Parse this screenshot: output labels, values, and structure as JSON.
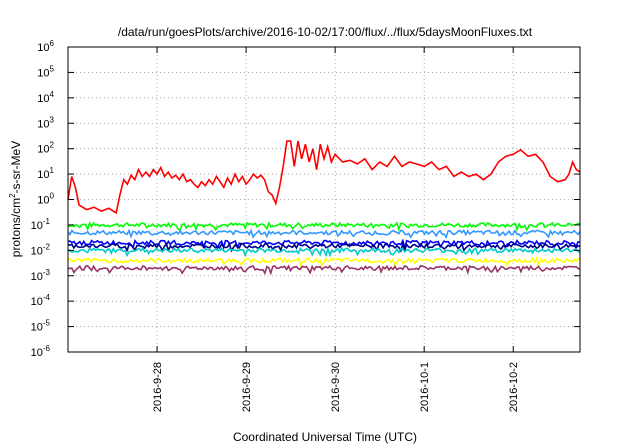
{
  "chart_data": {
    "type": "line",
    "title": "/data/run/goesPlots/archive/2016-10-02/17:00/flux/../flux/5daysMoonFluxes.txt",
    "xlabel": "Coordinated Universal Time (UTC)",
    "ylabel": {
      "base": "protons/cm",
      "sup": "2",
      "rest": "-s-sr-MeV"
    },
    "y_scale": "log",
    "ylim": [
      1e-06,
      1000000.0
    ],
    "y_ticks": [
      {
        "base": "10",
        "exp": "6"
      },
      {
        "base": "10",
        "exp": "5"
      },
      {
        "base": "10",
        "exp": "4"
      },
      {
        "base": "10",
        "exp": "3"
      },
      {
        "base": "10",
        "exp": "2"
      },
      {
        "base": "10",
        "exp": "1"
      },
      {
        "base": "10",
        "exp": "0"
      },
      {
        "base": "10",
        "exp": "-1"
      },
      {
        "base": "10",
        "exp": "-2"
      },
      {
        "base": "10",
        "exp": "-3"
      },
      {
        "base": "10",
        "exp": "-4"
      },
      {
        "base": "10",
        "exp": "-5"
      },
      {
        "base": "10",
        "exp": "-6"
      }
    ],
    "xlim": [
      "2016-09-27 00:00",
      "2016-10-02 18:00"
    ],
    "x_ticks": [
      "2016-9-28",
      "2016-9-29",
      "2016-9-30",
      "2016-10-1",
      "2016-10-2"
    ],
    "x_tick_values": [
      "2016-09-28",
      "2016-09-29",
      "2016-09-30",
      "2016-10-01",
      "2016-10-02"
    ],
    "grid": true,
    "legend": "none",
    "series": [
      {
        "color": "#ff0000",
        "points": [
          [
            "2016-09-27 00:00",
            1.0
          ],
          [
            "2016-09-27 01:00",
            8.0
          ],
          [
            "2016-09-27 02:00",
            3.0
          ],
          [
            "2016-09-27 03:00",
            0.6
          ],
          [
            "2016-09-27 05:00",
            0.4
          ],
          [
            "2016-09-27 07:00",
            0.5
          ],
          [
            "2016-09-27 09:00",
            0.35
          ],
          [
            "2016-09-27 11:00",
            0.45
          ],
          [
            "2016-09-27 13:00",
            0.3
          ],
          [
            "2016-09-27 14:00",
            1.5
          ],
          [
            "2016-09-27 15:00",
            6.0
          ],
          [
            "2016-09-27 16:00",
            4.0
          ],
          [
            "2016-09-27 17:00",
            9.0
          ],
          [
            "2016-09-27 18:00",
            6.0
          ],
          [
            "2016-09-27 19:00",
            15.0
          ],
          [
            "2016-09-27 20:00",
            8.0
          ],
          [
            "2016-09-27 21:00",
            12.0
          ],
          [
            "2016-09-27 22:00",
            8.0
          ],
          [
            "2016-09-27 23:00",
            15.0
          ],
          [
            "2016-09-28 00:00",
            10.0
          ],
          [
            "2016-09-28 01:00",
            18.0
          ],
          [
            "2016-09-28 02:00",
            8.0
          ],
          [
            "2016-09-28 03:00",
            12.0
          ],
          [
            "2016-09-28 04:00",
            7.0
          ],
          [
            "2016-09-28 05:00",
            9.0
          ],
          [
            "2016-09-28 06:00",
            6.0
          ],
          [
            "2016-09-28 07:00",
            10.0
          ],
          [
            "2016-09-28 08:00",
            5.0
          ],
          [
            "2016-09-28 09:00",
            6.0
          ],
          [
            "2016-09-28 10:00",
            4.0
          ],
          [
            "2016-09-28 11:00",
            3.0
          ],
          [
            "2016-09-28 12:00",
            5.0
          ],
          [
            "2016-09-28 13:00",
            3.5
          ],
          [
            "2016-09-28 14:00",
            6.0
          ],
          [
            "2016-09-28 15:00",
            4.0
          ],
          [
            "2016-09-28 16:00",
            8.0
          ],
          [
            "2016-09-28 17:00",
            5.0
          ],
          [
            "2016-09-28 18:00",
            3.0
          ],
          [
            "2016-09-28 19:00",
            7.0
          ],
          [
            "2016-09-28 20:00",
            4.0
          ],
          [
            "2016-09-28 21:00",
            10.0
          ],
          [
            "2016-09-28 22:00",
            5.0
          ],
          [
            "2016-09-28 23:00",
            8.0
          ],
          [
            "2016-09-29 00:00",
            4.0
          ],
          [
            "2016-09-29 01:00",
            6.0
          ],
          [
            "2016-09-29 02:00",
            10.0
          ],
          [
            "2016-09-29 03:00",
            7.0
          ],
          [
            "2016-09-29 04:00",
            9.0
          ],
          [
            "2016-09-29 05:00",
            6.0
          ],
          [
            "2016-09-29 06:00",
            2.0
          ],
          [
            "2016-09-29 07:00",
            1.5
          ],
          [
            "2016-09-29 08:00",
            0.7
          ],
          [
            "2016-09-29 09:00",
            3.0
          ],
          [
            "2016-09-29 10:00",
            20.0
          ],
          [
            "2016-09-29 11:00",
            200.0
          ],
          [
            "2016-09-29 12:00",
            200.0
          ],
          [
            "2016-09-29 13:00",
            20.0
          ],
          [
            "2016-09-29 14:00",
            200.0
          ],
          [
            "2016-09-29 15:00",
            40.0
          ],
          [
            "2016-09-29 16:00",
            150.0
          ],
          [
            "2016-09-29 17:00",
            30.0
          ],
          [
            "2016-09-29 18:00",
            100.0
          ],
          [
            "2016-09-29 19:00",
            15.0
          ],
          [
            "2016-09-29 20:00",
            150.0
          ],
          [
            "2016-09-29 21:00",
            40.0
          ],
          [
            "2016-09-29 22:00",
            120.0
          ],
          [
            "2016-09-29 23:00",
            30.0
          ],
          [
            "2016-09-30 00:00",
            60.0
          ],
          [
            "2016-09-30 02:00",
            30.0
          ],
          [
            "2016-09-30 04:00",
            35.0
          ],
          [
            "2016-09-30 06:00",
            25.0
          ],
          [
            "2016-09-30 08:00",
            40.0
          ],
          [
            "2016-09-30 10:00",
            15.0
          ],
          [
            "2016-09-30 12:00",
            30.0
          ],
          [
            "2016-09-30 14:00",
            20.0
          ],
          [
            "2016-09-30 16:00",
            50.0
          ],
          [
            "2016-09-30 18:00",
            20.0
          ],
          [
            "2016-09-30 20:00",
            30.0
          ],
          [
            "2016-09-30 22:00",
            25.0
          ],
          [
            "2016-10-01 00:00",
            20.0
          ],
          [
            "2016-10-01 02:00",
            30.0
          ],
          [
            "2016-10-01 04:00",
            15.0
          ],
          [
            "2016-10-01 06:00",
            20.0
          ],
          [
            "2016-10-01 08:00",
            8.0
          ],
          [
            "2016-10-01 10:00",
            12.0
          ],
          [
            "2016-10-01 12:00",
            8.0
          ],
          [
            "2016-10-01 14:00",
            10.0
          ],
          [
            "2016-10-01 16:00",
            6.0
          ],
          [
            "2016-10-01 18:00",
            10.0
          ],
          [
            "2016-10-01 20:00",
            30.0
          ],
          [
            "2016-10-01 22:00",
            50.0
          ],
          [
            "2016-10-02 00:00",
            60.0
          ],
          [
            "2016-10-02 02:00",
            90.0
          ],
          [
            "2016-10-02 04:00",
            50.0
          ],
          [
            "2016-10-02 06:00",
            60.0
          ],
          [
            "2016-10-02 08:00",
            30.0
          ],
          [
            "2016-10-02 10:00",
            8.0
          ],
          [
            "2016-10-02 12:00",
            5.0
          ],
          [
            "2016-10-02 14:00",
            6.0
          ],
          [
            "2016-10-02 15:00",
            10.0
          ],
          [
            "2016-10-02 16:00",
            30.0
          ],
          [
            "2016-10-02 17:00",
            15.0
          ],
          [
            "2016-10-02 18:00",
            12.0
          ]
        ]
      },
      {
        "color": "#00ff00",
        "level": 0.1
      },
      {
        "color": "#3399ff",
        "level": 0.05
      },
      {
        "color": "#0000ff",
        "level": 0.02
      },
      {
        "color": "#000088",
        "level": 0.015
      },
      {
        "color": "#00cccc",
        "level": 0.01
      },
      {
        "color": "#ffff00",
        "level": 0.004
      },
      {
        "color": "#993366",
        "level": 0.002
      }
    ]
  }
}
